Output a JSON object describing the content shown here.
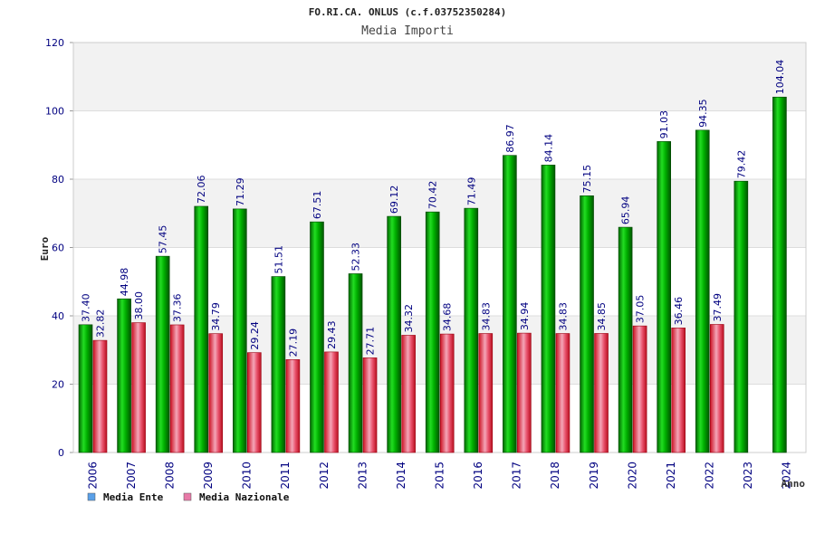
{
  "chart_data": {
    "type": "bar",
    "title": "FO.RI.CA. ONLUS (c.f.03752350284)",
    "subtitle": "Media Importi",
    "xlabel": "Anno",
    "ylabel": "Euro",
    "ylim": [
      0,
      120
    ],
    "yticks": [
      0,
      20,
      40,
      60,
      80,
      100,
      120
    ],
    "grid": true,
    "legend_position": "bottom-left",
    "categories": [
      "2006",
      "2007",
      "2008",
      "2009",
      "2010",
      "2011",
      "2012",
      "2013",
      "2014",
      "2015",
      "2016",
      "2017",
      "2018",
      "2019",
      "2020",
      "2021",
      "2022",
      "2023",
      "2024"
    ],
    "series": [
      {
        "name": "Media Ente",
        "color": "#00aa00",
        "legend_color": "#5aa0e8",
        "values": [
          37.4,
          44.98,
          57.45,
          72.06,
          71.29,
          51.51,
          67.51,
          52.33,
          69.12,
          70.42,
          71.49,
          86.97,
          84.14,
          75.15,
          65.94,
          91.03,
          94.35,
          79.42,
          104.04
        ],
        "labels": [
          "37.40",
          "44.98",
          "57.45",
          "72.06",
          "71.29",
          "51.51",
          "67.51",
          "52.33",
          "69.12",
          "70.42",
          "71.49",
          "86.97",
          "84.14",
          "75.15",
          "65.94",
          "91.03",
          "94.35",
          "79.42",
          "104.04"
        ]
      },
      {
        "name": "Media Nazionale",
        "color": "#dd2233",
        "legend_color": "#e87aa8",
        "values": [
          32.82,
          38.0,
          37.36,
          34.79,
          29.24,
          27.19,
          29.43,
          27.71,
          34.32,
          34.68,
          34.83,
          34.94,
          34.83,
          34.85,
          37.05,
          36.46,
          37.49,
          null,
          null
        ],
        "labels": [
          "32.82",
          "38.00",
          "37.36",
          "34.79",
          "29.24",
          "27.19",
          "29.43",
          "27.71",
          "34.32",
          "34.68",
          "34.83",
          "34.94",
          "34.83",
          "34.85",
          "37.05",
          "36.46",
          "37.49",
          "",
          ""
        ]
      }
    ]
  }
}
